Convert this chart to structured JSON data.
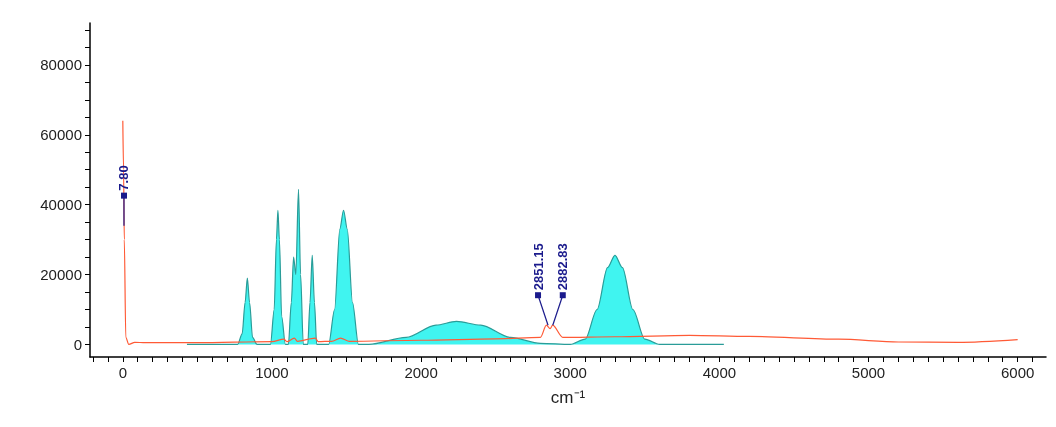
{
  "chart_data": {
    "type": "line",
    "xlabel": "cm⁻¹",
    "grid": false,
    "marker": "none",
    "line_style": "solid",
    "xlim": [
      -220,
      6190
    ],
    "ylim": [
      -3600,
      92000
    ],
    "xticks": [
      {
        "value": -200,
        "label": null
      },
      {
        "value": -100,
        "label": null
      },
      0,
      {
        "value": 100,
        "label": null
      },
      {
        "value": 200,
        "label": null
      },
      {
        "value": 300,
        "label": null
      },
      {
        "value": 400,
        "label": null
      },
      {
        "value": 500,
        "label": null
      },
      {
        "value": 600,
        "label": null
      },
      {
        "value": 700,
        "label": null
      },
      {
        "value": 800,
        "label": null
      },
      {
        "value": 900,
        "label": null
      },
      1000,
      {
        "value": 1100,
        "label": null
      },
      {
        "value": 1200,
        "label": null
      },
      {
        "value": 1300,
        "label": null
      },
      {
        "value": 1400,
        "label": null
      },
      {
        "value": 1500,
        "label": null
      },
      {
        "value": 1600,
        "label": null
      },
      {
        "value": 1700,
        "label": null
      },
      {
        "value": 1800,
        "label": null
      },
      {
        "value": 1900,
        "label": null
      },
      2000,
      {
        "value": 2100,
        "label": null
      },
      {
        "value": 2200,
        "label": null
      },
      {
        "value": 2300,
        "label": null
      },
      {
        "value": 2400,
        "label": null
      },
      {
        "value": 2500,
        "label": null
      },
      {
        "value": 2600,
        "label": null
      },
      {
        "value": 2700,
        "label": null
      },
      {
        "value": 2800,
        "label": null
      },
      {
        "value": 2900,
        "label": null
      },
      3000,
      {
        "value": 3100,
        "label": null
      },
      {
        "value": 3200,
        "label": null
      },
      {
        "value": 3300,
        "label": null
      },
      {
        "value": 3400,
        "label": null
      },
      {
        "value": 3500,
        "label": null
      },
      {
        "value": 3600,
        "label": null
      },
      {
        "value": 3700,
        "label": null
      },
      {
        "value": 3800,
        "label": null
      },
      {
        "value": 3900,
        "label": null
      },
      4000,
      {
        "value": 4100,
        "label": null
      },
      {
        "value": 4200,
        "label": null
      },
      {
        "value": 4300,
        "label": null
      },
      {
        "value": 4400,
        "label": null
      },
      {
        "value": 4500,
        "label": null
      },
      {
        "value": 4600,
        "label": null
      },
      {
        "value": 4700,
        "label": null
      },
      {
        "value": 4800,
        "label": null
      },
      {
        "value": 4900,
        "label": null
      },
      5000,
      {
        "value": 5100,
        "label": null
      },
      {
        "value": 5200,
        "label": null
      },
      {
        "value": 5300,
        "label": null
      },
      {
        "value": 5400,
        "label": null
      },
      {
        "value": 5500,
        "label": null
      },
      {
        "value": 5600,
        "label": null
      },
      {
        "value": 5700,
        "label": null
      },
      {
        "value": 5800,
        "label": null
      },
      {
        "value": 5900,
        "label": null
      },
      6000,
      {
        "value": 6100,
        "label": null
      }
    ],
    "yticks": [
      0,
      {
        "value": 5000,
        "label": null
      },
      {
        "value": 10000,
        "label": null
      },
      {
        "value": 15000,
        "label": null
      },
      20000,
      {
        "value": 25000,
        "label": null
      },
      {
        "value": 30000,
        "label": null
      },
      {
        "value": 35000,
        "label": null
      },
      40000,
      {
        "value": 45000,
        "label": null
      },
      {
        "value": 50000,
        "label": null
      },
      {
        "value": 55000,
        "label": null
      },
      60000,
      {
        "value": 65000,
        "label": null
      },
      {
        "value": 70000,
        "label": null
      },
      {
        "value": 75000,
        "label": null
      },
      80000,
      {
        "value": 85000,
        "label": null
      },
      {
        "value": 90000,
        "label": null
      }
    ],
    "series": [
      {
        "type": "area",
        "color": "#40f4f0",
        "x": [
          430,
          770,
          800,
          820,
          835,
          850,
          870,
          900,
          990,
          1015,
          1030,
          1040,
          1050,
          1065,
          1090,
          1110,
          1130,
          1145,
          1160,
          1178,
          1192,
          1210,
          1240,
          1255,
          1270,
          1285,
          1300,
          1380,
          1420,
          1455,
          1480,
          1505,
          1540,
          1580,
          1650,
          1900,
          2100,
          2237,
          2400,
          2600,
          2800,
          3000,
          3100,
          3180,
          3250,
          3300,
          3350,
          3420,
          3500,
          3600,
          4030
        ],
        "values": [
          0,
          0,
          3000,
          12000,
          19000,
          12000,
          2000,
          0,
          0,
          10000,
          30000,
          38400,
          30000,
          8000,
          0,
          0,
          12000,
          25000,
          20000,
          44400,
          20000,
          0,
          0,
          12000,
          25500,
          12000,
          0,
          0,
          10000,
          33000,
          38400,
          33000,
          12000,
          0,
          0,
          2000,
          5500,
          6600,
          5500,
          2000,
          300,
          0,
          1500,
          10000,
          22000,
          25500,
          22000,
          10000,
          1500,
          0,
          0
        ]
      },
      {
        "color": "#ff5a36",
        "x": [
          0,
          5,
          10,
          20,
          40,
          80,
          150,
          500,
          1000,
          1080,
          1100,
          1150,
          1170,
          1290,
          1310,
          1400,
          1460,
          1520,
          2000,
          2500,
          2800,
          2840,
          2865,
          2882,
          2950,
          3300,
          3800,
          4200,
          4800,
          5200,
          5600,
          6000
        ],
        "values": [
          64000,
          50000,
          30000,
          2000,
          0,
          600,
          500,
          500,
          800,
          1500,
          800,
          1800,
          900,
          1800,
          800,
          900,
          1800,
          900,
          1200,
          1600,
          2000,
          5500,
          4500,
          5500,
          2000,
          2200,
          2600,
          2300,
          1500,
          700,
          600,
          1400
        ]
      }
    ],
    "annotations": [
      {
        "text": "7.80",
        "x": 7.8,
        "y": 34000
      },
      {
        "text": "2851.15",
        "x": 2851.15,
        "y": 5500
      },
      {
        "text": "2882.83",
        "x": 2882.83,
        "y": 5500
      }
    ]
  }
}
